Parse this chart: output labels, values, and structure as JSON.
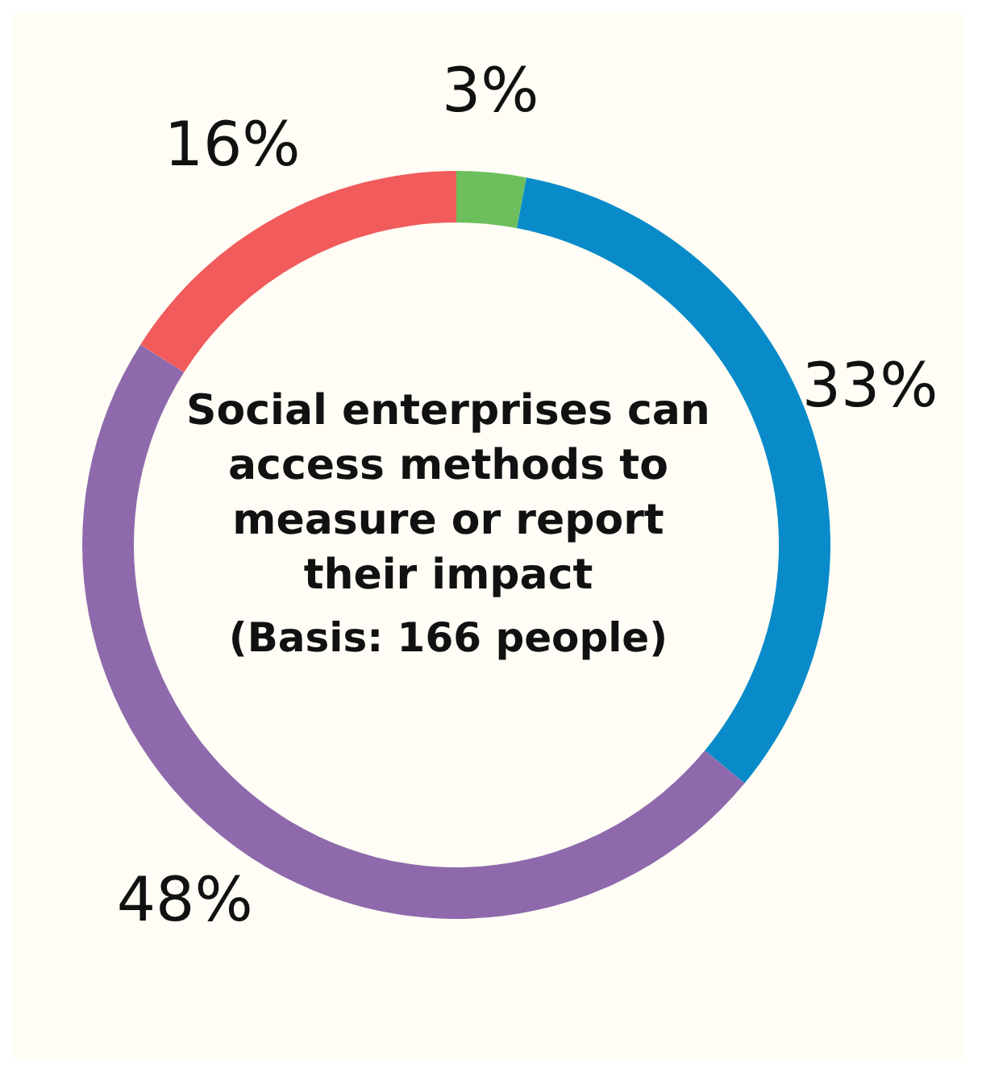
{
  "chart_data": {
    "type": "donut",
    "title": "Social enterprises can access methods to measure or report their impact",
    "subtitle": "(Basis: 166 people)",
    "categories": [
      null,
      null,
      null,
      null
    ],
    "values": [
      3,
      33,
      48,
      16
    ],
    "colors": [
      "#6cbf5c",
      "#0a8bc9",
      "#8e6aad",
      "#f15b5b"
    ],
    "value_labels": [
      "3%",
      "33%",
      "48%",
      "16%"
    ]
  }
}
